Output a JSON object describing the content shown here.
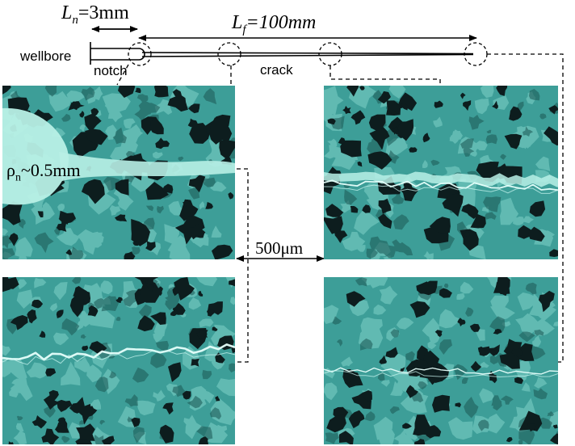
{
  "labels": {
    "notch_length": {
      "symbol": "L",
      "subscript": "n",
      "value": "=3mm"
    },
    "fracture_length": {
      "symbol": "L",
      "subscript": "f",
      "value": "=100mm"
    },
    "wellbore": "wellbore",
    "notch": "notch",
    "crack": "crack",
    "notch_radius": {
      "symbol": "ρ",
      "subscript": "n",
      "value": "~0.5mm"
    },
    "scale_bar": "500μm"
  },
  "colors": {
    "rock_base": "#3d9e98",
    "rock_light": "#7fd2c9",
    "grain_dark": "#0d1d1e",
    "fluid": "#b8f0e6",
    "line": "#000000"
  }
}
